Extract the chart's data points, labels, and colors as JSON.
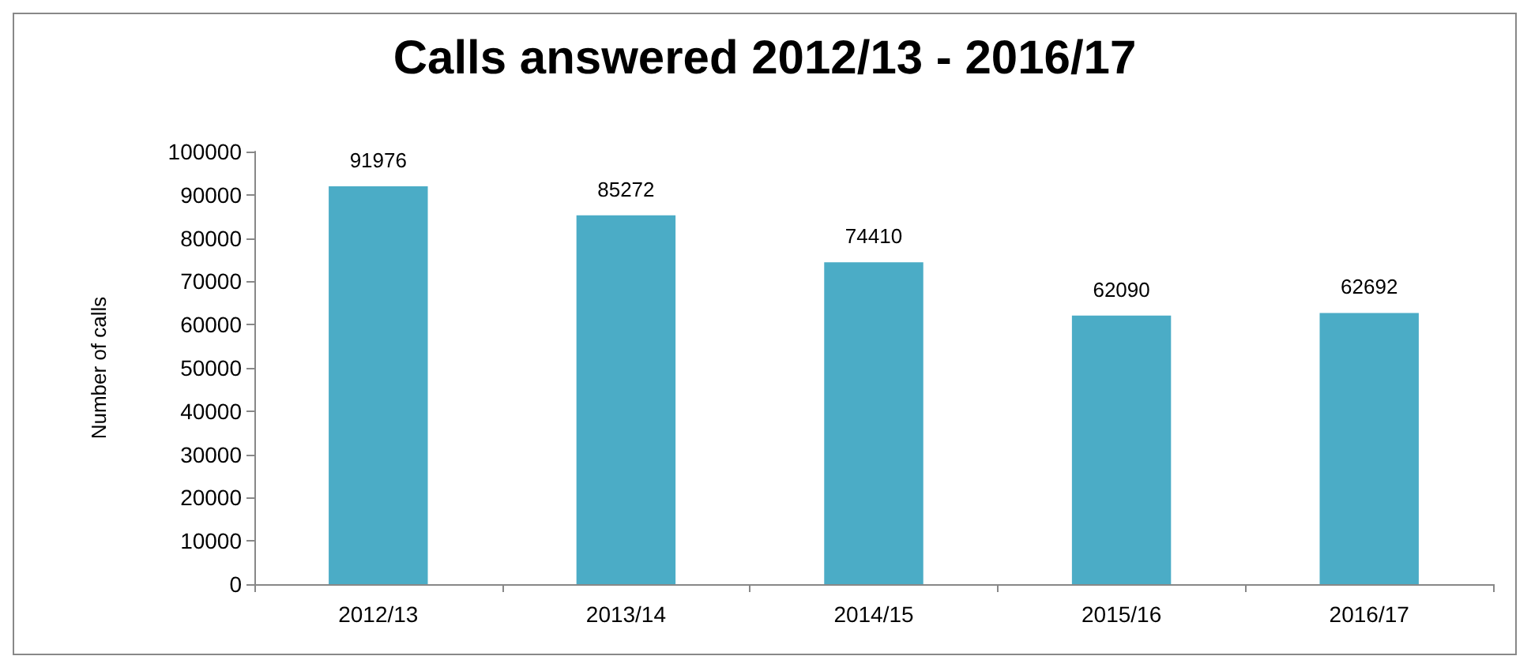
{
  "chart_data": {
    "type": "bar",
    "title": "Calls answered 2012/13 - 2016/17",
    "ylabel": "Number of calls",
    "categories": [
      "2012/13",
      "2013/14",
      "2014/15",
      "2015/16",
      "2016/17"
    ],
    "values": [
      91976,
      85272,
      74410,
      62090,
      62692
    ],
    "color": "#4bacc6",
    "ylim": [
      0,
      100000
    ],
    "yticks": [
      0,
      10000,
      20000,
      30000,
      40000,
      50000,
      60000,
      70000,
      80000,
      90000,
      100000
    ],
    "grid": false,
    "data_labels": true
  }
}
